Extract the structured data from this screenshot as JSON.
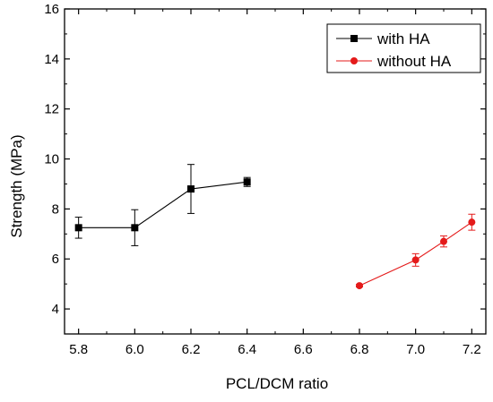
{
  "chart_data": {
    "type": "line",
    "title": "",
    "xlabel": "PCL/DCM ratio",
    "ylabel": "Strength (MPa)",
    "xlim": [
      5.75,
      7.25
    ],
    "ylim": [
      3,
      16
    ],
    "xticks": [
      5.8,
      6.0,
      6.2,
      6.4,
      6.6,
      6.8,
      7.0,
      7.2
    ],
    "xtick_labels": [
      "5.8",
      "6.0",
      "6.2",
      "6.4",
      "6.6",
      "6.8",
      "7.0",
      "7.2"
    ],
    "yticks": [
      4,
      6,
      8,
      10,
      12,
      14,
      16
    ],
    "ytick_labels": [
      "4",
      "6",
      "8",
      "10",
      "12",
      "14",
      "16"
    ],
    "grid": false,
    "legend_position": "top-right",
    "series": [
      {
        "name": "with HA",
        "color": "#000000",
        "marker": "square",
        "x": [
          5.8,
          6.0,
          6.2,
          6.4
        ],
        "y": [
          7.25,
          7.25,
          8.8,
          9.08
        ],
        "err": [
          0.42,
          0.72,
          0.98,
          0.18
        ]
      },
      {
        "name": "without HA",
        "color": "#e41a1a",
        "marker": "circle",
        "x": [
          6.8,
          7.0,
          7.1,
          7.2
        ],
        "y": [
          4.93,
          5.96,
          6.7,
          7.47
        ],
        "err": [
          0.05,
          0.25,
          0.22,
          0.32
        ]
      }
    ]
  }
}
